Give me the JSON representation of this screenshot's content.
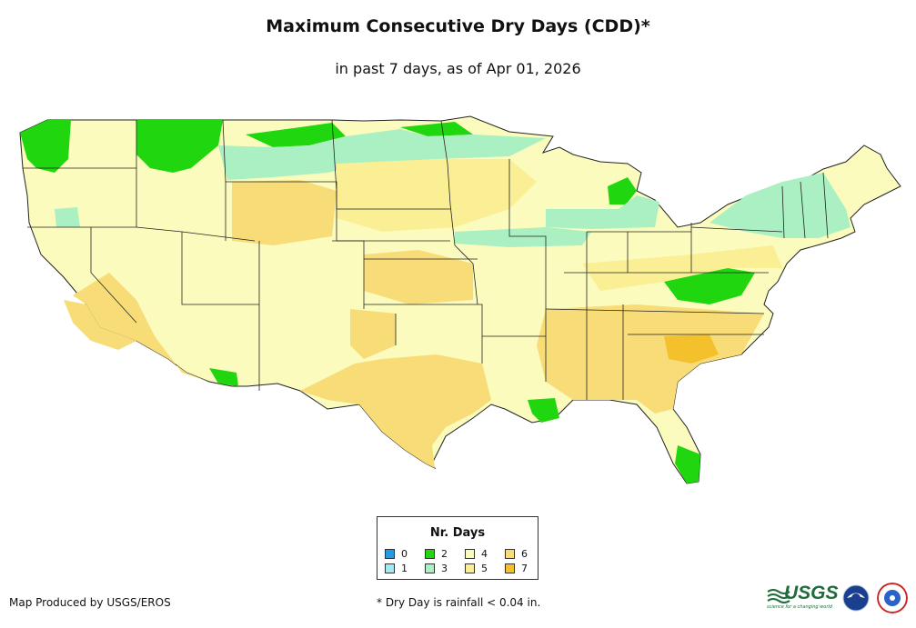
{
  "title": "Maximum Consecutive Dry Days (CDD)*",
  "subtitle": "in past 7 days, as of Apr 01, 2026",
  "legend": {
    "title": "Nr. Days",
    "items": [
      {
        "label": "0",
        "color": "#1f9be8"
      },
      {
        "label": "1",
        "color": "#a3e9ef"
      },
      {
        "label": "2",
        "color": "#1fd60f"
      },
      {
        "label": "3",
        "color": "#aaf0c2"
      },
      {
        "label": "4",
        "color": "#fbfbbd"
      },
      {
        "label": "5",
        "color": "#faef95"
      },
      {
        "label": "6",
        "color": "#f8dc78"
      },
      {
        "label": "7",
        "color": "#f4c02c"
      }
    ]
  },
  "footer": {
    "producer": "Map Produced by USGS/EROS",
    "note": "* Dry Day is rainfall < 0.04 in."
  },
  "logos": {
    "usgs_text": "USGS",
    "usgs_tagline": "science for a changing world",
    "noaa_icon": "noaa-logo",
    "nws_icon": "nws-logo"
  },
  "map": {
    "region": "Contiguous United States",
    "base_color": "#fbfbbd",
    "coverage": "state-by-state gridded CDD values"
  }
}
